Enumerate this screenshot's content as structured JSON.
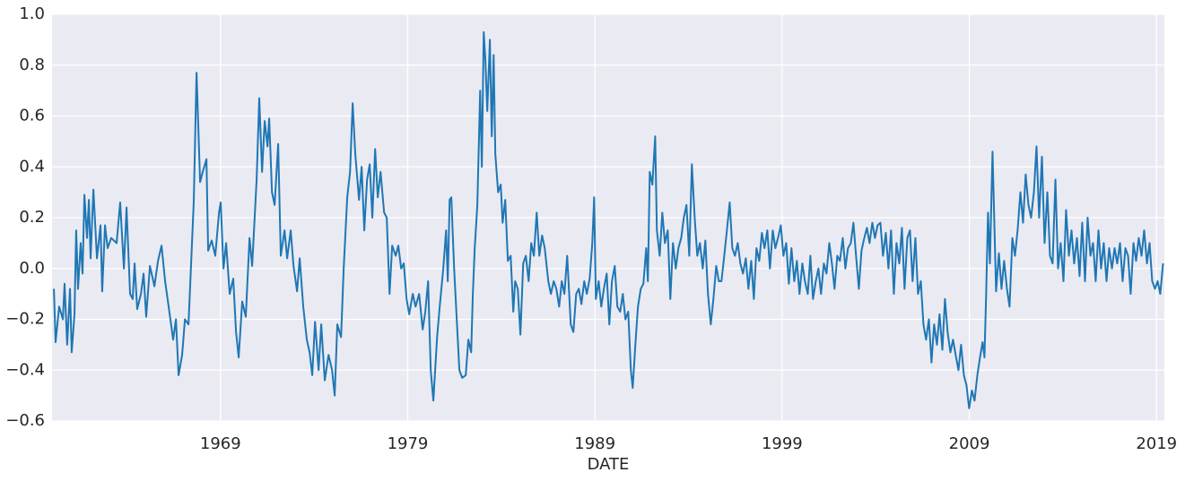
{
  "chart_data": {
    "type": "line",
    "x_label": "DATE",
    "xlim": [
      1960,
      2019.42
    ],
    "xticks": [
      1969,
      1979,
      1989,
      1999,
      2009,
      2019
    ],
    "ylim": [
      -0.6,
      1.0
    ],
    "yticks": [
      {
        "value": -0.6,
        "label": "−0.6"
      },
      {
        "value": -0.4,
        "label": "−0.4"
      },
      {
        "value": -0.2,
        "label": "−0.2"
      },
      {
        "value": 0,
        "label": "0.0"
      },
      0.2,
      0.4,
      0.6,
      0.8,
      {
        "value": 1,
        "label": "1.0"
      }
    ],
    "grid": true,
    "series": [
      {
        "color": "#1f77b4",
        "x": [
          1960.1,
          1960.19,
          1960.38,
          1960.58,
          1960.67,
          1960.81,
          1960.96,
          1961.05,
          1961.2,
          1961.29,
          1961.39,
          1961.53,
          1961.63,
          1961.73,
          1961.87,
          1961.97,
          1962.06,
          1962.21,
          1962.4,
          1962.59,
          1962.68,
          1962.83,
          1962.97,
          1963.16,
          1963.45,
          1963.64,
          1963.84,
          1963.98,
          1964.17,
          1964.31,
          1964.41,
          1964.55,
          1964.75,
          1964.89,
          1965.03,
          1965.23,
          1965.47,
          1965.66,
          1965.85,
          1966.04,
          1966.23,
          1966.47,
          1966.62,
          1966.76,
          1966.95,
          1967.1,
          1967.29,
          1967.43,
          1967.57,
          1967.72,
          1967.91,
          1968.05,
          1968.25,
          1968.34,
          1968.53,
          1968.72,
          1968.92,
          1969.01,
          1969.16,
          1969.3,
          1969.49,
          1969.68,
          1969.83,
          1969.97,
          1970.16,
          1970.35,
          1970.55,
          1970.69,
          1970.93,
          1971.07,
          1971.22,
          1971.36,
          1971.51,
          1971.6,
          1971.75,
          1971.89,
          1972.08,
          1972.22,
          1972.42,
          1972.56,
          1972.75,
          1972.9,
          1973.09,
          1973.23,
          1973.42,
          1973.61,
          1973.76,
          1973.9,
          1974.05,
          1974.24,
          1974.38,
          1974.57,
          1974.77,
          1974.96,
          1975.1,
          1975.24,
          1975.44,
          1975.58,
          1975.77,
          1975.92,
          1976.06,
          1976.2,
          1976.4,
          1976.54,
          1976.68,
          1976.83,
          1976.97,
          1977.11,
          1977.26,
          1977.4,
          1977.55,
          1977.74,
          1977.88,
          1978.03,
          1978.17,
          1978.36,
          1978.5,
          1978.65,
          1978.79,
          1978.94,
          1979.08,
          1979.27,
          1979.42,
          1979.61,
          1979.8,
          1979.94,
          1980.09,
          1980.23,
          1980.37,
          1980.57,
          1980.71,
          1980.9,
          1981.05,
          1981.14,
          1981.24,
          1981.33,
          1981.48,
          1981.62,
          1981.76,
          1981.91,
          1982.1,
          1982.24,
          1982.39,
          1982.48,
          1982.58,
          1982.72,
          1982.87,
          1982.96,
          1983.06,
          1983.15,
          1983.25,
          1983.39,
          1983.49,
          1983.59,
          1983.68,
          1983.83,
          1983.97,
          1984.07,
          1984.21,
          1984.35,
          1984.5,
          1984.64,
          1984.74,
          1984.88,
          1985.02,
          1985.17,
          1985.31,
          1985.46,
          1985.6,
          1985.74,
          1985.89,
          1986.03,
          1986.18,
          1986.32,
          1986.51,
          1986.65,
          1986.8,
          1986.94,
          1987.09,
          1987.23,
          1987.37,
          1987.52,
          1987.71,
          1987.85,
          1988.0,
          1988.14,
          1988.28,
          1988.43,
          1988.57,
          1988.72,
          1988.86,
          1988.96,
          1989.05,
          1989.2,
          1989.34,
          1989.48,
          1989.63,
          1989.77,
          1989.91,
          1990.06,
          1990.2,
          1990.35,
          1990.49,
          1990.63,
          1990.78,
          1990.92,
          1991.02,
          1991.16,
          1991.3,
          1991.45,
          1991.59,
          1991.74,
          1991.83,
          1991.93,
          1992.07,
          1992.22,
          1992.31,
          1992.46,
          1992.6,
          1992.74,
          1992.89,
          1993.03,
          1993.17,
          1993.32,
          1993.46,
          1993.61,
          1993.75,
          1993.89,
          1994.04,
          1994.18,
          1994.33,
          1994.47,
          1994.61,
          1994.76,
          1994.9,
          1995.04,
          1995.19,
          1995.33,
          1995.48,
          1995.62,
          1995.76,
          1995.91,
          1996.05,
          1996.2,
          1996.34,
          1996.48,
          1996.63,
          1996.77,
          1996.91,
          1997.06,
          1997.2,
          1997.35,
          1997.49,
          1997.63,
          1997.78,
          1997.92,
          1998.06,
          1998.21,
          1998.35,
          1998.5,
          1998.64,
          1998.78,
          1998.93,
          1999.07,
          1999.22,
          1999.36,
          1999.5,
          1999.65,
          1999.79,
          1999.93,
          2000.08,
          2000.22,
          2000.37,
          2000.51,
          2000.65,
          2000.8,
          2000.94,
          2001.08,
          2001.23,
          2001.37,
          2001.52,
          2001.66,
          2001.8,
          2001.95,
          2002.09,
          2002.24,
          2002.38,
          2002.52,
          2002.67,
          2002.81,
          2002.95,
          2003.1,
          2003.24,
          2003.39,
          2003.53,
          2003.67,
          2003.82,
          2003.96,
          2004.1,
          2004.25,
          2004.39,
          2004.54,
          2004.68,
          2004.82,
          2004.97,
          2005.11,
          2005.26,
          2005.4,
          2005.54,
          2005.69,
          2005.83,
          2005.97,
          2006.12,
          2006.26,
          2006.41,
          2006.55,
          2006.69,
          2006.84,
          2006.98,
          2007.12,
          2007.27,
          2007.41,
          2007.56,
          2007.7,
          2007.84,
          2007.99,
          2008.13,
          2008.27,
          2008.42,
          2008.56,
          2008.71,
          2008.85,
          2008.99,
          2009.14,
          2009.28,
          2009.43,
          2009.57,
          2009.71,
          2009.81,
          2009.9,
          2010.0,
          2010.1,
          2010.24,
          2010.33,
          2010.43,
          2010.58,
          2010.72,
          2010.86,
          2011.01,
          2011.15,
          2011.3,
          2011.44,
          2011.58,
          2011.73,
          2011.87,
          2012.01,
          2012.16,
          2012.3,
          2012.45,
          2012.59,
          2012.73,
          2012.88,
          2013.02,
          2013.17,
          2013.31,
          2013.45,
          2013.6,
          2013.74,
          2013.88,
          2014.03,
          2014.17,
          2014.32,
          2014.46,
          2014.6,
          2014.75,
          2014.89,
          2015.03,
          2015.18,
          2015.32,
          2015.47,
          2015.61,
          2015.75,
          2015.9,
          2016.04,
          2016.18,
          2016.33,
          2016.47,
          2016.62,
          2016.76,
          2016.9,
          2017.05,
          2017.19,
          2017.34,
          2017.48,
          2017.62,
          2017.77,
          2017.91,
          2018.05,
          2018.2,
          2018.34,
          2018.49,
          2018.63,
          2018.77,
          2018.92,
          2019.06,
          2019.2,
          2019.35
        ],
        "values": [
          -0.08,
          -0.29,
          -0.15,
          -0.2,
          -0.06,
          -0.3,
          -0.08,
          -0.33,
          -0.18,
          0.15,
          -0.08,
          0.1,
          -0.02,
          0.29,
          0.12,
          0.27,
          0.04,
          0.31,
          0.04,
          0.17,
          -0.09,
          0.17,
          0.08,
          0.12,
          0.1,
          0.26,
          0.0,
          0.24,
          -0.1,
          -0.12,
          0.02,
          -0.16,
          -0.1,
          -0.02,
          -0.19,
          0.01,
          -0.07,
          0.03,
          0.09,
          -0.05,
          -0.15,
          -0.28,
          -0.2,
          -0.42,
          -0.34,
          -0.2,
          -0.22,
          0.02,
          0.26,
          0.77,
          0.34,
          0.38,
          0.43,
          0.07,
          0.11,
          0.05,
          0.22,
          0.26,
          0.0,
          0.1,
          -0.1,
          -0.04,
          -0.25,
          -0.35,
          -0.13,
          -0.19,
          0.12,
          0.01,
          0.35,
          0.67,
          0.38,
          0.58,
          0.48,
          0.59,
          0.3,
          0.25,
          0.49,
          0.05,
          0.15,
          0.04,
          0.15,
          0.01,
          -0.09,
          0.04,
          -0.15,
          -0.28,
          -0.33,
          -0.42,
          -0.21,
          -0.4,
          -0.22,
          -0.44,
          -0.34,
          -0.4,
          -0.5,
          -0.22,
          -0.27,
          0.0,
          0.28,
          0.38,
          0.65,
          0.45,
          0.27,
          0.4,
          0.15,
          0.35,
          0.41,
          0.2,
          0.47,
          0.28,
          0.38,
          0.22,
          0.2,
          -0.1,
          0.09,
          0.05,
          0.09,
          0.0,
          0.02,
          -0.12,
          -0.18,
          -0.1,
          -0.15,
          -0.1,
          -0.24,
          -0.17,
          -0.05,
          -0.4,
          -0.52,
          -0.27,
          -0.15,
          0.0,
          0.15,
          -0.05,
          0.27,
          0.28,
          0.0,
          -0.2,
          -0.4,
          -0.43,
          -0.42,
          -0.28,
          -0.33,
          -0.1,
          0.08,
          0.25,
          0.7,
          0.4,
          0.93,
          0.82,
          0.62,
          0.9,
          0.52,
          0.84,
          0.45,
          0.3,
          0.33,
          0.18,
          0.27,
          0.03,
          0.05,
          -0.17,
          -0.05,
          -0.08,
          -0.26,
          0.02,
          0.05,
          -0.05,
          0.1,
          0.05,
          0.22,
          0.05,
          0.13,
          0.08,
          -0.05,
          -0.1,
          -0.05,
          -0.08,
          -0.15,
          -0.05,
          -0.1,
          0.05,
          -0.22,
          -0.25,
          -0.1,
          -0.08,
          -0.14,
          -0.05,
          -0.1,
          -0.04,
          0.1,
          0.28,
          -0.12,
          -0.05,
          -0.15,
          -0.08,
          -0.02,
          -0.22,
          -0.05,
          0.01,
          -0.15,
          -0.17,
          -0.1,
          -0.2,
          -0.17,
          -0.4,
          -0.47,
          -0.3,
          -0.15,
          -0.08,
          -0.06,
          0.08,
          -0.05,
          0.38,
          0.33,
          0.52,
          0.15,
          0.05,
          0.22,
          0.1,
          0.15,
          -0.12,
          0.1,
          0.0,
          0.08,
          0.12,
          0.2,
          0.25,
          0.05,
          0.41,
          0.2,
          0.05,
          0.1,
          0.0,
          0.11,
          -0.1,
          -0.22,
          -0.12,
          0.01,
          -0.05,
          -0.05,
          0.05,
          0.15,
          0.26,
          0.08,
          0.05,
          0.1,
          0.02,
          -0.02,
          0.04,
          -0.08,
          0.03,
          -0.12,
          0.08,
          0.03,
          0.14,
          0.08,
          0.15,
          0.0,
          0.15,
          0.08,
          0.12,
          0.17,
          0.05,
          0.1,
          -0.06,
          0.08,
          -0.05,
          0.03,
          -0.1,
          0.02,
          -0.05,
          -0.1,
          0.05,
          -0.12,
          -0.05,
          0.0,
          -0.1,
          0.02,
          -0.02,
          0.1,
          0.02,
          -0.08,
          0.05,
          0.03,
          0.12,
          0.0,
          0.08,
          0.1,
          0.18,
          0.05,
          -0.08,
          0.07,
          0.12,
          0.16,
          0.1,
          0.18,
          0.12,
          0.17,
          0.18,
          0.05,
          0.14,
          0.0,
          0.15,
          -0.1,
          0.1,
          0.02,
          0.16,
          -0.08,
          0.12,
          0.15,
          -0.05,
          0.12,
          -0.1,
          -0.05,
          -0.22,
          -0.28,
          -0.2,
          -0.37,
          -0.22,
          -0.3,
          -0.18,
          -0.32,
          -0.12,
          -0.25,
          -0.33,
          -0.28,
          -0.34,
          -0.4,
          -0.3,
          -0.42,
          -0.46,
          -0.55,
          -0.48,
          -0.52,
          -0.42,
          -0.35,
          -0.29,
          -0.35,
          -0.1,
          0.22,
          0.02,
          0.46,
          0.2,
          -0.09,
          0.06,
          -0.08,
          0.03,
          -0.08,
          -0.15,
          0.12,
          0.05,
          0.15,
          0.3,
          0.18,
          0.37,
          0.25,
          0.2,
          0.3,
          0.48,
          0.2,
          0.44,
          0.1,
          0.3,
          0.05,
          0.02,
          0.35,
          0.0,
          0.1,
          -0.05,
          0.23,
          0.05,
          0.15,
          0.02,
          0.12,
          -0.03,
          0.18,
          -0.05,
          0.2,
          0.05,
          0.1,
          -0.05,
          0.15,
          0.0,
          0.1,
          -0.05,
          0.08,
          0.0,
          0.08,
          0.02,
          0.1,
          -0.05,
          0.08,
          0.05,
          -0.1,
          0.1,
          0.03,
          0.12,
          0.05,
          0.15,
          0.02,
          0.1,
          -0.05,
          -0.08,
          -0.05,
          -0.1,
          0.02
        ]
      }
    ]
  }
}
